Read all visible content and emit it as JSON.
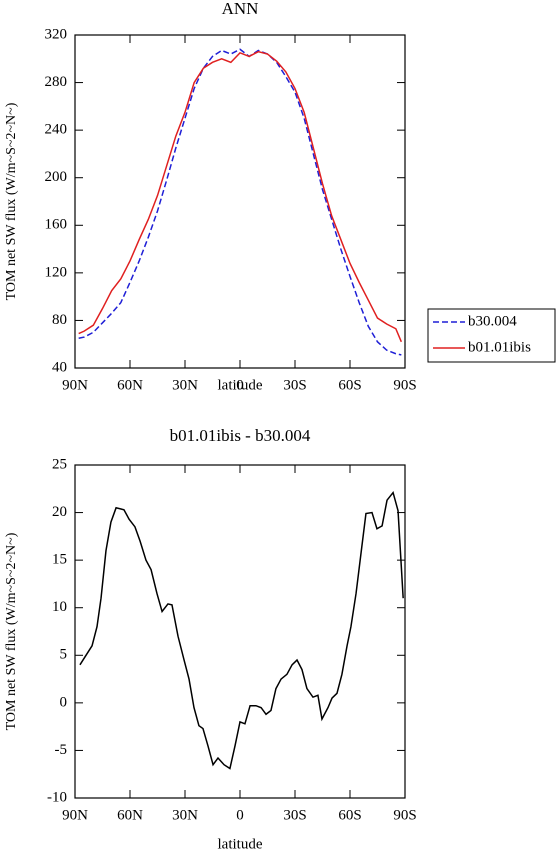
{
  "chart_data": [
    {
      "type": "line",
      "title": "ANN",
      "xlabel": "latitude",
      "ylabel": "TOM net SW flux (W/m~S~2~N~)",
      "x": [
        88,
        85,
        80,
        75,
        70,
        65,
        60,
        55,
        50,
        45,
        40,
        35,
        30,
        25,
        20,
        15,
        10,
        5,
        0,
        -5,
        -10,
        -15,
        -20,
        -25,
        -30,
        -35,
        -40,
        -45,
        -50,
        -55,
        -60,
        -65,
        -70,
        -75,
        -80,
        -85,
        -88
      ],
      "series": [
        {
          "name": "b30.004",
          "color": "#1f1fd6",
          "linestyle": "dashed",
          "values": [
            65,
            66,
            70,
            78,
            86,
            95,
            112,
            130,
            150,
            172,
            198,
            225,
            250,
            275,
            292,
            302,
            307,
            304,
            308,
            302,
            307,
            304,
            297,
            285,
            272,
            250,
            220,
            190,
            165,
            140,
            117,
            95,
            75,
            62,
            55,
            52,
            51
          ]
        },
        {
          "name": "b01.01ibis",
          "color": "#e02020",
          "linestyle": "solid",
          "values": [
            69,
            71,
            76,
            90,
            105,
            115,
            130,
            148,
            165,
            185,
            210,
            235,
            255,
            280,
            292,
            297,
            300,
            297,
            305,
            302,
            306,
            304,
            298,
            289,
            275,
            255,
            225,
            195,
            168,
            148,
            128,
            112,
            97,
            82,
            77,
            73,
            62
          ]
        }
      ],
      "xlim": [
        90,
        -90
      ],
      "xticks": [
        {
          "value": 90,
          "label": "90N"
        },
        {
          "value": 60,
          "label": "60N"
        },
        {
          "value": 30,
          "label": "30N"
        },
        0,
        {
          "value": -30,
          "label": "30S"
        },
        {
          "value": -60,
          "label": "60S"
        },
        {
          "value": -90,
          "label": "90S"
        }
      ],
      "ylim": [
        40,
        320
      ],
      "yticks": [
        40,
        80,
        120,
        160,
        200,
        240,
        280,
        320
      ],
      "legend": "right"
    },
    {
      "type": "line",
      "title": "b01.01ibis - b30.004",
      "xlabel": "latitude",
      "ylabel": "TOM net SW flux (W/m~S~2~N~)",
      "x": [
        87.3,
        80.7,
        78,
        75.8,
        73.1,
        70.4,
        67.6,
        63.3,
        60.5,
        57.3,
        54.5,
        51.3,
        48.5,
        45.3,
        42.5,
        39.3,
        37.1,
        33.8,
        30.5,
        27.8,
        25.1,
        22.4,
        20.2,
        17.5,
        14.7,
        12,
        8.7,
        5.5,
        2.7,
        0,
        -2.7,
        -5.5,
        -8.7,
        -11.5,
        -14.2,
        -16.9,
        -19.6,
        -22.4,
        -25.6,
        -28.4,
        -31.1,
        -33.8,
        -36.5,
        -39.8,
        -42.5,
        -44.7,
        -48,
        -50.2,
        -52.9,
        -55.6,
        -58.4,
        -60.5,
        -63.3,
        -66.5,
        -68.7,
        -72,
        -74.7,
        -77.5,
        -80.2,
        -83.5,
        -86.2,
        -89
      ],
      "series": [
        {
          "color": "#000000",
          "linestyle": "solid",
          "values": [
            4,
            6,
            8,
            11,
            16,
            19,
            20.5,
            20.3,
            19.3,
            18.5,
            17,
            15,
            14,
            11.5,
            9.6,
            10.4,
            10.3,
            7,
            4.5,
            2.5,
            -0.5,
            -2.4,
            -2.7,
            -4.5,
            -6.5,
            -5.8,
            -6.5,
            -6.9,
            -4.5,
            -2,
            -2.2,
            -0.3,
            -0.3,
            -0.5,
            -1.2,
            -0.8,
            1.5,
            2.5,
            3,
            4,
            4.5,
            3.5,
            1.5,
            0.6,
            0.8,
            -1.7,
            -0.5,
            0.5,
            1,
            3,
            6,
            8,
            11.5,
            16.5,
            19.9,
            20,
            18.3,
            18.6,
            21.3,
            22.1,
            20.2,
            11
          ]
        }
      ],
      "xlim": [
        90,
        -90
      ],
      "xticks": [
        {
          "value": 90,
          "label": "90N"
        },
        {
          "value": 60,
          "label": "60N"
        },
        {
          "value": 30,
          "label": "30N"
        },
        0,
        {
          "value": -30,
          "label": "30S"
        },
        {
          "value": -60,
          "label": "60S"
        },
        {
          "value": -90,
          "label": "90S"
        }
      ],
      "ylim": [
        -10,
        25
      ],
      "yticks": [
        -10,
        -5,
        0,
        5,
        10,
        15,
        20,
        25
      ]
    }
  ]
}
